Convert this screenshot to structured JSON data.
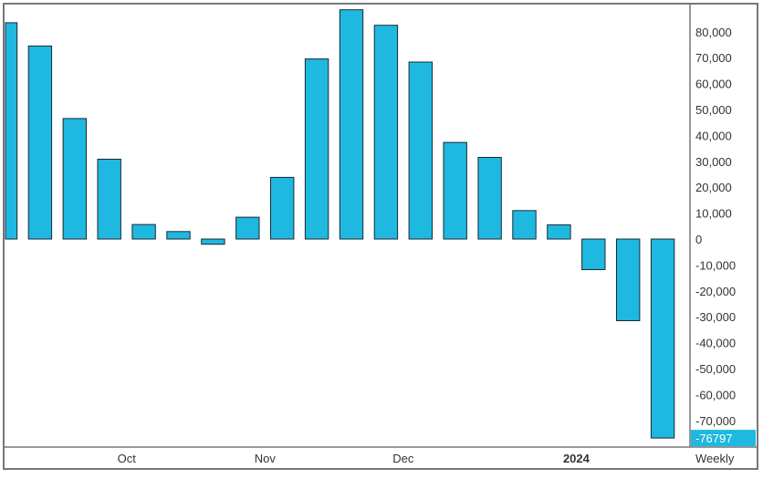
{
  "chart_data": {
    "type": "bar",
    "title": "",
    "xlabel": "",
    "ylabel": "",
    "frequency_label": "Weekly",
    "last_value_label": "-76797",
    "ylim": [
      -80000,
      90000
    ],
    "y_ticks": [
      80000,
      70000,
      60000,
      50000,
      40000,
      30000,
      20000,
      10000,
      0,
      -10000,
      -20000,
      -30000,
      -40000,
      -50000,
      -60000,
      -70000
    ],
    "y_tick_labels": [
      "80,000",
      "70,000",
      "60,000",
      "50,000",
      "40,000",
      "30,000",
      "20,000",
      "10,000",
      "0",
      "-10,000",
      "-20,000",
      "-30,000",
      "-40,000",
      "-50,000",
      "-60,000",
      "-70,000"
    ],
    "x_tick_labels": [
      {
        "label": "Oct",
        "after_bar": 3,
        "bold": false
      },
      {
        "label": "Nov",
        "after_bar": 7,
        "bold": false
      },
      {
        "label": "Dec",
        "after_bar": 11,
        "bold": false
      },
      {
        "label": "2024",
        "after_bar": 16,
        "bold": true
      }
    ],
    "values": [
      83500,
      74500,
      46500,
      30800,
      5600,
      2900,
      -2000,
      8400,
      23800,
      69500,
      88500,
      82500,
      68300,
      37300,
      31500,
      11000,
      5500,
      -11800,
      -31500,
      -76797
    ],
    "colors": {
      "bar": "#1eb8e0",
      "bar_stroke": "#1a2a33",
      "frame": "#777777",
      "axis_text": "#333333",
      "highlight_bg": "#1eb8e0",
      "highlight_text": "#ffffff"
    }
  }
}
